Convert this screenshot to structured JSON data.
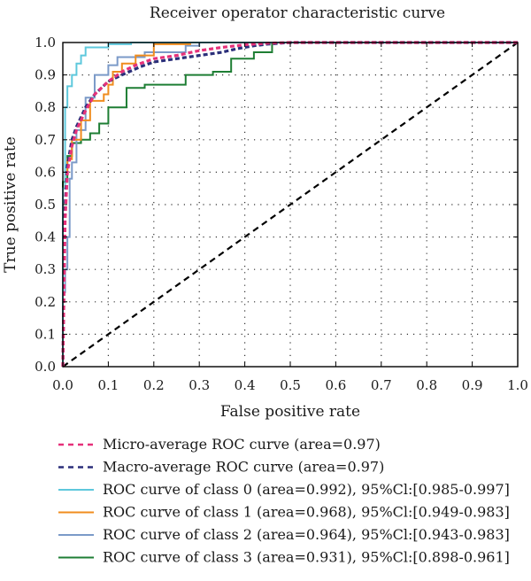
{
  "chart_data": {
    "type": "line",
    "title": "Receiver operator characteristic curve",
    "xlabel": "False positive rate",
    "ylabel": "True positive rate",
    "xlim": [
      0,
      1
    ],
    "ylim": [
      0,
      1
    ],
    "xticks": [
      "0.0",
      "0.1",
      "0.2",
      "0.3",
      "0.4",
      "0.5",
      "0.6",
      "0.7",
      "0.8",
      "0.9",
      "1.0"
    ],
    "yticks": [
      "0.0",
      "0.1",
      "0.2",
      "0.3",
      "0.4",
      "0.5",
      "0.6",
      "0.7",
      "0.8",
      "0.9",
      "1.0"
    ],
    "grid": true,
    "legend_position": "below",
    "series": [
      {
        "name": "Micro-average ROC curve (area=0.97)",
        "color": "#e6317a",
        "style": "dashed",
        "x": [
          0.0,
          0.005,
          0.01,
          0.02,
          0.03,
          0.05,
          0.07,
          0.1,
          0.13,
          0.16,
          0.2,
          0.25,
          0.3,
          0.35,
          0.4,
          0.45,
          0.5,
          1.0
        ],
        "y": [
          0.0,
          0.45,
          0.6,
          0.68,
          0.73,
          0.79,
          0.84,
          0.88,
          0.91,
          0.93,
          0.95,
          0.96,
          0.975,
          0.985,
          0.993,
          0.998,
          1.0,
          1.0
        ]
      },
      {
        "name": "Macro-average ROC curve (area=0.97)",
        "color": "#2b2f7a",
        "style": "dashed",
        "x": [
          0.0,
          0.005,
          0.01,
          0.02,
          0.03,
          0.05,
          0.07,
          0.1,
          0.13,
          0.17,
          0.2,
          0.25,
          0.3,
          0.35,
          0.38,
          0.42,
          0.45,
          0.5,
          1.0
        ],
        "y": [
          0.0,
          0.5,
          0.62,
          0.7,
          0.74,
          0.8,
          0.84,
          0.88,
          0.9,
          0.925,
          0.94,
          0.95,
          0.96,
          0.97,
          0.98,
          0.99,
          0.995,
          1.0,
          1.0
        ]
      },
      {
        "name": "ROC curve of class 0 (area=0.992), 95%Cl:[0.985-0.997]",
        "color": "#5ec8dc",
        "style": "solid",
        "x": [
          0.0,
          0.0,
          0.005,
          0.005,
          0.01,
          0.01,
          0.02,
          0.02,
          0.03,
          0.03,
          0.04,
          0.04,
          0.05,
          0.05,
          0.1,
          0.1,
          0.15,
          0.15,
          1.0
        ],
        "y": [
          0.0,
          0.55,
          0.55,
          0.8,
          0.8,
          0.865,
          0.865,
          0.9,
          0.9,
          0.935,
          0.935,
          0.96,
          0.96,
          0.985,
          0.985,
          0.995,
          0.995,
          1.0,
          1.0
        ]
      },
      {
        "name": "ROC curve of class 1 (area=0.968), 95%Cl:[0.949-0.983]",
        "color": "#f08c1e",
        "style": "solid",
        "x": [
          0.0,
          0.0,
          0.005,
          0.005,
          0.01,
          0.01,
          0.02,
          0.02,
          0.04,
          0.04,
          0.06,
          0.06,
          0.09,
          0.09,
          0.1,
          0.1,
          0.11,
          0.11,
          0.13,
          0.13,
          0.16,
          0.16,
          0.2,
          0.2,
          0.28,
          0.28,
          1.0
        ],
        "y": [
          0.0,
          0.55,
          0.55,
          0.6,
          0.6,
          0.64,
          0.64,
          0.7,
          0.7,
          0.76,
          0.76,
          0.82,
          0.82,
          0.84,
          0.84,
          0.87,
          0.87,
          0.91,
          0.91,
          0.935,
          0.935,
          0.96,
          0.96,
          0.995,
          0.995,
          1.0,
          1.0
        ]
      },
      {
        "name": "ROC curve of class 2 (area=0.964), 95%Cl:[0.943-0.983]",
        "color": "#7b9ac8",
        "style": "solid",
        "x": [
          0.0,
          0.0,
          0.005,
          0.005,
          0.01,
          0.01,
          0.015,
          0.015,
          0.02,
          0.02,
          0.03,
          0.03,
          0.05,
          0.05,
          0.07,
          0.07,
          0.1,
          0.1,
          0.12,
          0.12,
          0.18,
          0.18,
          0.27,
          0.27,
          0.3,
          0.3,
          1.0
        ],
        "y": [
          0.0,
          0.23,
          0.23,
          0.3,
          0.3,
          0.4,
          0.4,
          0.58,
          0.58,
          0.63,
          0.63,
          0.73,
          0.73,
          0.83,
          0.83,
          0.9,
          0.9,
          0.93,
          0.93,
          0.955,
          0.955,
          0.97,
          0.97,
          0.99,
          0.99,
          1.0,
          1.0
        ]
      },
      {
        "name": "ROC curve of class 3 (area=0.931), 95%Cl:[0.898-0.961]",
        "color": "#1e7e34",
        "style": "solid",
        "x": [
          0.0,
          0.0,
          0.01,
          0.01,
          0.02,
          0.02,
          0.04,
          0.04,
          0.06,
          0.06,
          0.08,
          0.08,
          0.1,
          0.1,
          0.14,
          0.14,
          0.18,
          0.18,
          0.27,
          0.27,
          0.33,
          0.33,
          0.37,
          0.37,
          0.42,
          0.42,
          0.46,
          0.46,
          1.0
        ],
        "y": [
          0.0,
          0.57,
          0.57,
          0.65,
          0.65,
          0.69,
          0.69,
          0.7,
          0.7,
          0.72,
          0.72,
          0.75,
          0.75,
          0.8,
          0.8,
          0.86,
          0.86,
          0.87,
          0.87,
          0.9,
          0.9,
          0.91,
          0.91,
          0.95,
          0.95,
          0.97,
          0.97,
          1.0,
          1.0
        ]
      },
      {
        "name": "",
        "color": "#000000",
        "style": "dashed",
        "x": [
          0.0,
          1.0
        ],
        "y": [
          0.0,
          1.0
        ]
      }
    ]
  }
}
